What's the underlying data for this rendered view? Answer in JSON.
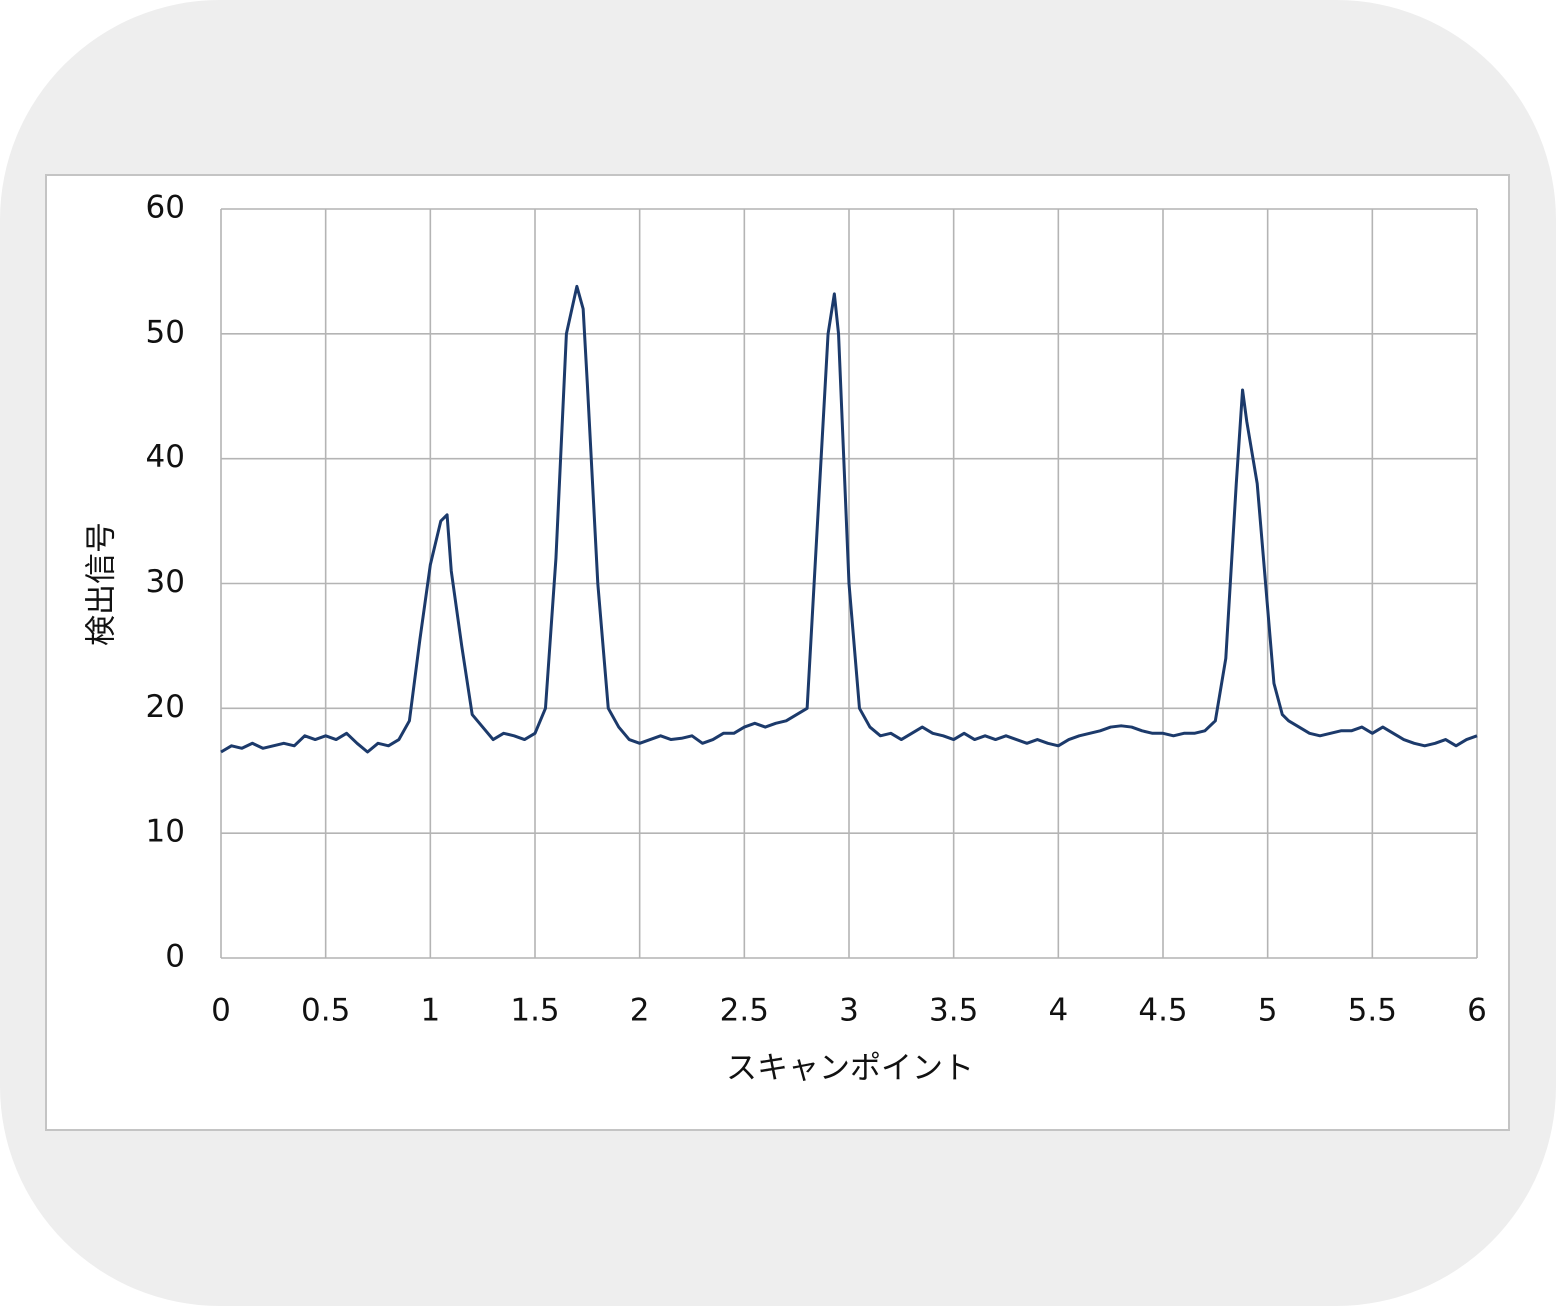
{
  "chart_data": {
    "type": "line",
    "x_label": "スキャンポイント",
    "y_label": "検出信号",
    "x": [
      0,
      0.05,
      0.1,
      0.15,
      0.2,
      0.25,
      0.3,
      0.35,
      0.4,
      0.45,
      0.5,
      0.55,
      0.6,
      0.65,
      0.7,
      0.75,
      0.8,
      0.85,
      0.9,
      0.95,
      1.0,
      1.05,
      1.08,
      1.1,
      1.15,
      1.2,
      1.25,
      1.3,
      1.35,
      1.4,
      1.45,
      1.5,
      1.55,
      1.6,
      1.65,
      1.7,
      1.73,
      1.75,
      1.8,
      1.85,
      1.9,
      1.95,
      2.0,
      2.05,
      2.1,
      2.15,
      2.2,
      2.25,
      2.3,
      2.35,
      2.4,
      2.45,
      2.5,
      2.55,
      2.6,
      2.65,
      2.7,
      2.75,
      2.8,
      2.85,
      2.9,
      2.93,
      2.95,
      3.0,
      3.05,
      3.1,
      3.15,
      3.2,
      3.25,
      3.3,
      3.35,
      3.4,
      3.45,
      3.5,
      3.55,
      3.6,
      3.65,
      3.7,
      3.75,
      3.8,
      3.85,
      3.9,
      3.95,
      4.0,
      4.05,
      4.1,
      4.15,
      4.2,
      4.25,
      4.3,
      4.35,
      4.4,
      4.45,
      4.5,
      4.55,
      4.6,
      4.65,
      4.7,
      4.75,
      4.8,
      4.85,
      4.88,
      4.9,
      4.95,
      5.0,
      5.03,
      5.07,
      5.1,
      5.15,
      5.2,
      5.25,
      5.3,
      5.35,
      5.4,
      5.45,
      5.5,
      5.55,
      5.6,
      5.65,
      5.7,
      5.75,
      5.8,
      5.85,
      5.9,
      5.95,
      6.0
    ],
    "values": [
      16.5,
      17,
      16.8,
      17.2,
      16.8,
      17,
      17.2,
      17,
      17.8,
      17.5,
      17.8,
      17.5,
      18,
      17.2,
      16.5,
      17.2,
      17,
      17.5,
      19,
      25.5,
      31.5,
      35,
      35.5,
      31,
      25,
      19.5,
      18.5,
      17.5,
      18,
      17.8,
      17.5,
      18,
      20,
      32,
      50,
      53.8,
      52,
      46,
      30,
      20,
      18.5,
      17.5,
      17.2,
      17.5,
      17.8,
      17.5,
      17.6,
      17.8,
      17.2,
      17.5,
      18,
      18,
      18.5,
      18.8,
      18.5,
      18.8,
      19,
      19.5,
      20,
      35,
      50,
      53.2,
      50,
      30,
      20,
      18.5,
      17.8,
      18,
      17.5,
      18,
      18.5,
      18,
      17.8,
      17.5,
      18,
      17.5,
      17.8,
      17.5,
      17.8,
      17.5,
      17.2,
      17.5,
      17.2,
      17,
      17.5,
      17.8,
      18,
      18.2,
      18.5,
      18.6,
      18.5,
      18.2,
      18,
      18,
      17.8,
      18,
      18,
      18.2,
      19,
      24,
      38,
      45.5,
      43,
      38,
      28,
      22,
      19.5,
      19,
      18.5,
      18,
      17.8,
      18,
      18.2,
      18.2,
      18.5,
      18,
      18.5,
      18,
      17.5,
      17.2,
      17,
      17.2,
      17.5,
      17,
      17.5,
      17.8
    ],
    "color": "#1c3a6b",
    "xlim": [
      0,
      6
    ],
    "xticks": [
      0,
      0.5,
      1,
      1.5,
      2,
      2.5,
      3,
      3.5,
      4,
      4.5,
      5,
      5.5,
      6
    ],
    "ylim": [
      0,
      60
    ],
    "yticks": [
      0,
      10,
      20,
      30,
      40,
      50,
      60
    ],
    "grid": true
  }
}
